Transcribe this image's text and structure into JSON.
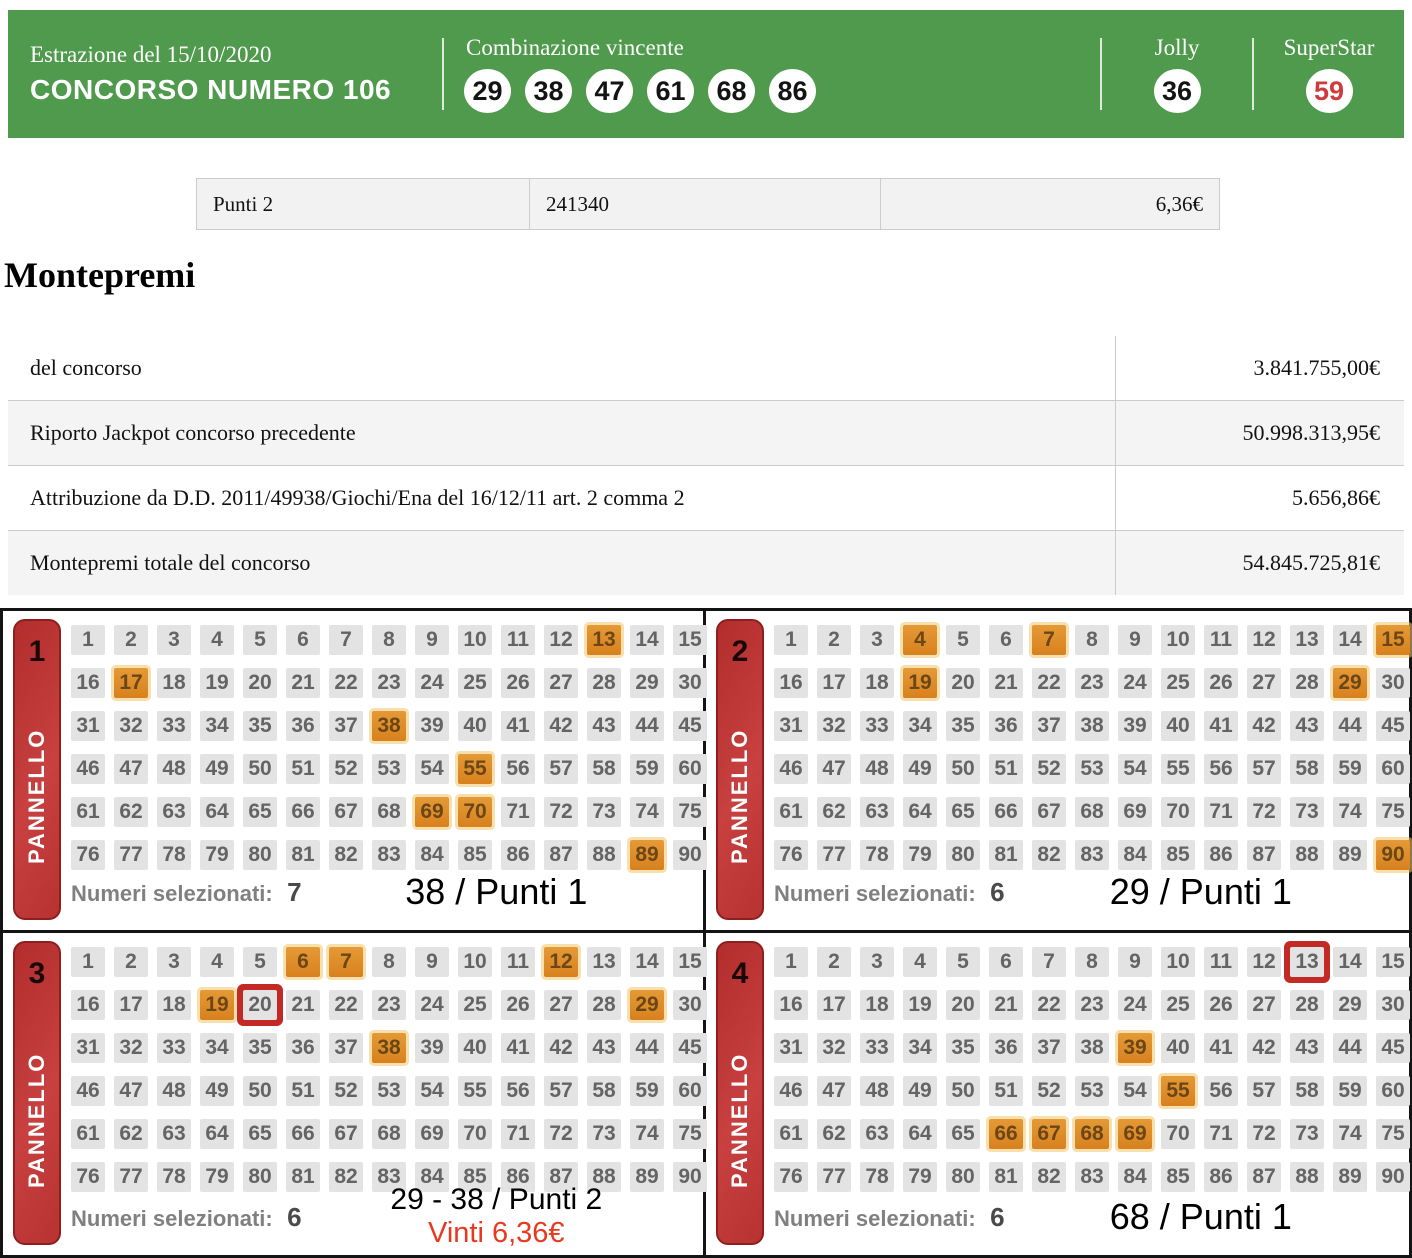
{
  "colors": {
    "green_header": "#4f9a4c",
    "superstar_red": "#cf3a3c",
    "highlight_orange": "#e49a36",
    "outline_red": "#c32a26",
    "tab_red": "#c84040",
    "win_red": "#e8391f"
  },
  "header": {
    "draw_date": "Estrazione del 15/10/2020",
    "concourse_title": "CONCORSO NUMERO 106",
    "combination_label": "Combinazione vincente",
    "winning_numbers": [
      "29",
      "38",
      "47",
      "61",
      "68",
      "86"
    ],
    "jolly_label": "Jolly",
    "jolly_number": "36",
    "superstar_label": "SuperStar",
    "superstar_number": "59"
  },
  "prize_row": {
    "category": "Punti 2",
    "winners_count": "241340",
    "amount": "6,36€"
  },
  "montepremi": {
    "title": "Montepremi",
    "rows": [
      {
        "label": "del concorso",
        "value": "3.841.755,00€"
      },
      {
        "label": "Riporto Jackpot concorso precedente",
        "value": "50.998.313,95€"
      },
      {
        "label": "Attribuzione da D.D. 2011/49938/Giochi/Ena del 16/12/11 art. 2 comma 2",
        "value": "5.656,86€"
      },
      {
        "label": "Montepremi totale del concorso",
        "value": "54.845.725,81€"
      }
    ]
  },
  "panels": {
    "tab_label": "PANNELLO",
    "selected_label": "Numeri selezionati:",
    "grid_max": 90,
    "items": [
      {
        "number": "1",
        "selected_count": "7",
        "highlighted": [
          13,
          17,
          38,
          55,
          69,
          70,
          89
        ],
        "outlined": [],
        "note": "38 / Punti 1",
        "win": ""
      },
      {
        "number": "2",
        "selected_count": "6",
        "highlighted": [
          4,
          7,
          15,
          19,
          29,
          90
        ],
        "outlined": [],
        "note": "29 / Punti 1",
        "win": ""
      },
      {
        "number": "3",
        "selected_count": "6",
        "highlighted": [
          6,
          7,
          12,
          19,
          29,
          38
        ],
        "outlined": [
          20
        ],
        "note": "29 - 38 / Punti 2",
        "win": "Vinti 6,36€"
      },
      {
        "number": "4",
        "selected_count": "6",
        "highlighted": [
          39,
          55,
          66,
          67,
          68,
          69
        ],
        "outlined": [
          13
        ],
        "note": "68 / Punti 1",
        "win": ""
      }
    ]
  }
}
